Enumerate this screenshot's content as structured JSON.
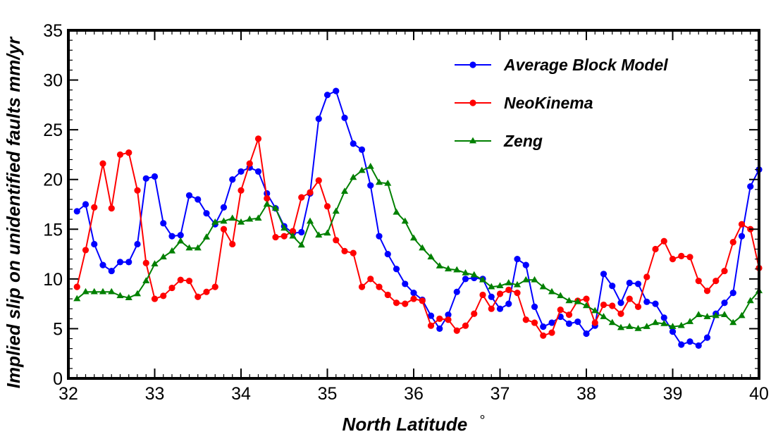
{
  "chart_data": {
    "type": "line",
    "xlabel": "North Latitude",
    "xlabel_degree": "°",
    "ylabel": "Implied slip on unidentified faults mm/yr",
    "xlim": [
      32,
      40
    ],
    "ylim": [
      0,
      35
    ],
    "xticks": [
      "32",
      "33",
      "34",
      "35",
      "36",
      "37",
      "38",
      "39",
      "40"
    ],
    "yticks": [
      "0",
      "5",
      "10",
      "15",
      "20",
      "25",
      "30",
      "35"
    ],
    "grid": false,
    "legend": "top-right",
    "series": [
      {
        "name": "Average Block Model",
        "color": "#0000ff",
        "marker": "circle",
        "x": [
          32.1,
          32.2,
          32.3,
          32.4,
          32.5,
          32.6,
          32.7,
          32.8,
          32.9,
          33.0,
          33.1,
          33.2,
          33.3,
          33.4,
          33.5,
          33.6,
          33.7,
          33.8,
          33.9,
          34.0,
          34.1,
          34.2,
          34.3,
          34.4,
          34.5,
          34.6,
          34.7,
          34.8,
          34.9,
          35.0,
          35.1,
          35.2,
          35.3,
          35.4,
          35.5,
          35.6,
          35.7,
          35.8,
          35.9,
          36.0,
          36.1,
          36.2,
          36.3,
          36.4,
          36.5,
          36.6,
          36.7,
          36.8,
          36.9,
          37.0,
          37.1,
          37.2,
          37.3,
          37.4,
          37.5,
          37.6,
          37.7,
          37.8,
          37.9,
          38.0,
          38.1,
          38.2,
          38.3,
          38.4,
          38.5,
          38.6,
          38.7,
          38.8,
          38.9,
          39.0,
          39.1,
          39.2,
          39.3,
          39.4,
          39.5,
          39.6,
          39.7,
          39.8,
          39.9,
          40.0
        ],
        "values": [
          16.8,
          17.5,
          13.5,
          11.4,
          10.8,
          11.7,
          11.7,
          13.5,
          20.1,
          20.3,
          15.6,
          14.3,
          14.4,
          18.4,
          18.0,
          16.6,
          15.5,
          17.2,
          20.0,
          20.8,
          21.2,
          20.8,
          18.6,
          17.1,
          15.3,
          14.6,
          14.7,
          18.6,
          26.1,
          28.5,
          28.9,
          26.2,
          23.6,
          23.0,
          19.4,
          14.3,
          12.5,
          11.0,
          9.5,
          8.6,
          7.9,
          6.3,
          5.0,
          6.4,
          8.7,
          10.0,
          10.1,
          10.0,
          8.2,
          7.0,
          7.5,
          12.0,
          11.4,
          7.2,
          5.2,
          5.6,
          6.2,
          5.5,
          5.7,
          4.5,
          5.3,
          10.5,
          9.3,
          7.6,
          9.6,
          9.5,
          7.7,
          7.5,
          6.1,
          4.7,
          3.4,
          3.7,
          3.3,
          4.1,
          6.5,
          7.6,
          8.6,
          14.3,
          19.3,
          21.0
        ]
      },
      {
        "name": "NeoKinema",
        "color": "#ff0000",
        "marker": "circle",
        "x": [
          32.1,
          32.2,
          32.3,
          32.4,
          32.5,
          32.6,
          32.7,
          32.8,
          32.9,
          33.0,
          33.1,
          33.2,
          33.3,
          33.4,
          33.5,
          33.6,
          33.7,
          33.8,
          33.9,
          34.0,
          34.1,
          34.2,
          34.3,
          34.4,
          34.5,
          34.6,
          34.7,
          34.8,
          34.9,
          35.0,
          35.1,
          35.2,
          35.3,
          35.4,
          35.5,
          35.6,
          35.7,
          35.8,
          35.9,
          36.0,
          36.1,
          36.2,
          36.3,
          36.4,
          36.5,
          36.6,
          36.7,
          36.8,
          36.9,
          37.0,
          37.1,
          37.2,
          37.3,
          37.4,
          37.5,
          37.6,
          37.7,
          37.8,
          37.9,
          38.0,
          38.1,
          38.2,
          38.3,
          38.4,
          38.5,
          38.6,
          38.7,
          38.8,
          38.9,
          39.0,
          39.1,
          39.2,
          39.3,
          39.4,
          39.5,
          39.6,
          39.7,
          39.8,
          39.9,
          40.0
        ],
        "values": [
          9.2,
          12.9,
          17.2,
          21.6,
          17.1,
          22.5,
          22.7,
          18.9,
          11.6,
          8.0,
          8.3,
          9.1,
          9.9,
          9.8,
          8.2,
          8.7,
          9.2,
          15.0,
          13.5,
          18.9,
          21.6,
          24.1,
          18.1,
          14.2,
          14.3,
          14.8,
          18.2,
          18.7,
          19.9,
          17.3,
          13.9,
          12.8,
          12.6,
          9.2,
          10.0,
          9.2,
          8.4,
          7.6,
          7.5,
          8.0,
          7.8,
          5.3,
          6.0,
          5.9,
          4.8,
          5.3,
          6.5,
          8.4,
          7.0,
          8.5,
          8.9,
          8.6,
          5.9,
          5.6,
          4.3,
          4.6,
          6.9,
          6.4,
          7.8,
          8.0,
          5.6,
          7.4,
          7.3,
          6.5,
          8.0,
          7.2,
          10.2,
          13.0,
          13.8,
          12.0,
          12.3,
          12.2,
          9.8,
          8.8,
          9.8,
          10.8,
          13.7,
          15.5,
          15.0,
          11.1
        ]
      },
      {
        "name": "Zeng",
        "color": "#008000",
        "marker": "triangle",
        "x": [
          32.1,
          32.2,
          32.3,
          32.4,
          32.5,
          32.6,
          32.7,
          32.8,
          32.9,
          33.0,
          33.1,
          33.2,
          33.3,
          33.4,
          33.5,
          33.6,
          33.7,
          33.8,
          33.9,
          34.0,
          34.1,
          34.2,
          34.3,
          34.4,
          34.5,
          34.6,
          34.7,
          34.8,
          34.9,
          35.0,
          35.1,
          35.2,
          35.3,
          35.4,
          35.5,
          35.6,
          35.7,
          35.8,
          35.9,
          36.0,
          36.1,
          36.2,
          36.3,
          36.4,
          36.5,
          36.6,
          36.7,
          36.8,
          36.9,
          37.0,
          37.1,
          37.2,
          37.3,
          37.4,
          37.5,
          37.6,
          37.7,
          37.8,
          37.9,
          38.0,
          38.1,
          38.2,
          38.3,
          38.4,
          38.5,
          38.6,
          38.7,
          38.8,
          38.9,
          39.0,
          39.1,
          39.2,
          39.3,
          39.4,
          39.5,
          39.6,
          39.7,
          39.8,
          39.9,
          40.0
        ],
        "values": [
          8.0,
          8.7,
          8.7,
          8.7,
          8.7,
          8.3,
          8.1,
          8.5,
          9.8,
          11.5,
          12.2,
          12.8,
          13.8,
          13.1,
          13.1,
          14.2,
          15.7,
          15.8,
          16.1,
          15.7,
          16.0,
          16.1,
          17.5,
          17.1,
          15.1,
          14.3,
          13.4,
          15.8,
          14.4,
          14.6,
          16.8,
          18.8,
          20.2,
          20.9,
          21.3,
          19.7,
          19.6,
          16.7,
          15.8,
          14.1,
          13.1,
          12.2,
          11.3,
          11.0,
          10.9,
          10.6,
          10.4,
          9.9,
          9.2,
          9.3,
          9.6,
          9.4,
          9.9,
          9.9,
          9.2,
          8.7,
          8.3,
          7.8,
          7.7,
          7.3,
          6.8,
          6.2,
          5.6,
          5.1,
          5.2,
          5.0,
          5.2,
          5.6,
          5.5,
          5.2,
          5.3,
          5.7,
          6.4,
          6.2,
          6.3,
          6.4,
          5.6,
          6.3,
          7.8,
          8.8
        ]
      }
    ]
  }
}
